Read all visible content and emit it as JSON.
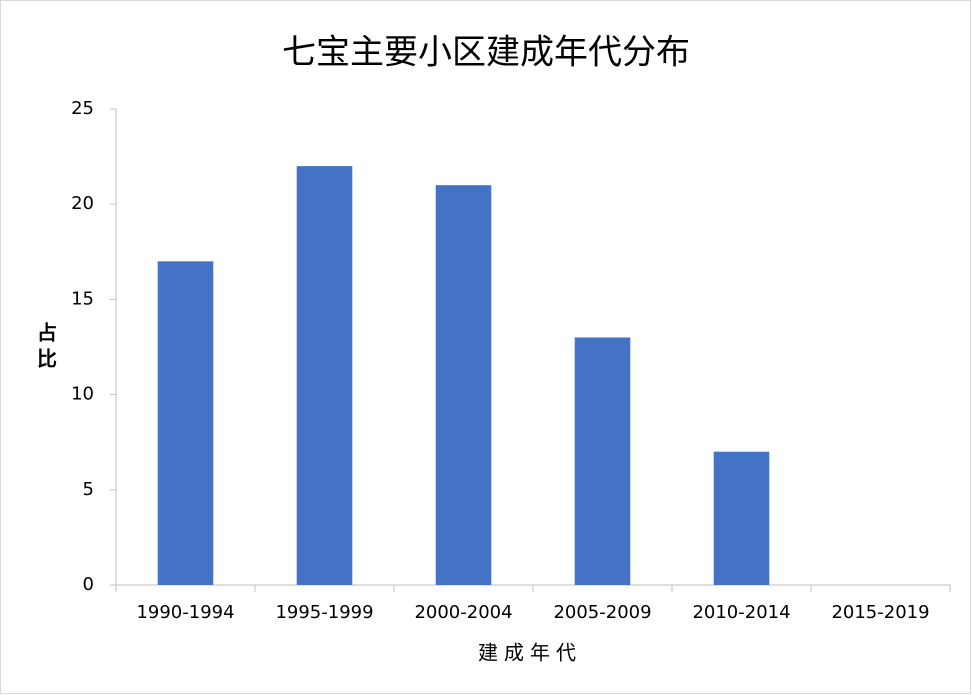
{
  "chart_data": {
    "type": "bar",
    "title": "七宝主要小区建成年代分布",
    "x_label": "建成年代",
    "y_label": "占比",
    "categories": [
      "1990-1994",
      "1995-1999",
      "2000-2004",
      "2005-2009",
      "2010-2014",
      "2015-2019"
    ],
    "values": [
      17,
      22,
      21,
      13,
      7,
      0
    ],
    "color": "#4472c4",
    "ylim": [
      0,
      25
    ],
    "yticks": [
      0,
      5,
      10,
      15,
      20,
      25
    ],
    "grid": false
  }
}
